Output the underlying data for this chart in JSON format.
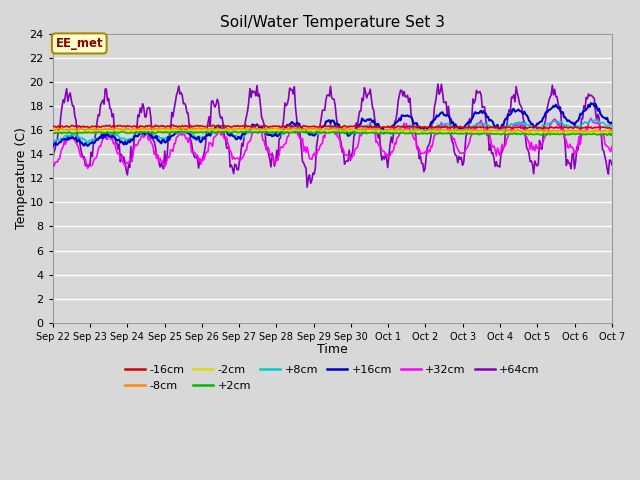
{
  "title": "Soil/Water Temperature Set 3",
  "xlabel": "Time",
  "ylabel": "Temperature (C)",
  "ylim": [
    0,
    24
  ],
  "yticks": [
    0,
    2,
    4,
    6,
    8,
    10,
    12,
    14,
    16,
    18,
    20,
    22,
    24
  ],
  "bg_color": "#d8d8d8",
  "plot_bg_color": "#d8d8d8",
  "annotation_text": "EE_met",
  "annotation_bg": "#ffffcc",
  "annotation_border": "#aa8800",
  "annotation_text_color": "#880000",
  "legend": [
    [
      "-16cm",
      "#dd0000"
    ],
    [
      "-8cm",
      "#ff8800"
    ],
    [
      "-2cm",
      "#dddd00"
    ],
    [
      "+2cm",
      "#00bb00"
    ],
    [
      "+8cm",
      "#00cccc"
    ],
    [
      "+16cm",
      "#0000cc"
    ],
    [
      "+32cm",
      "#ff00ff"
    ],
    [
      "+64cm",
      "#8800bb"
    ]
  ],
  "date_labels": [
    "Sep 22",
    "Sep 23",
    "Sep 24",
    "Sep 25",
    "Sep 26",
    "Sep 27",
    "Sep 28",
    "Sep 29",
    "Sep 30",
    "Oct 1",
    "Oct 2",
    "Oct 3",
    "Oct 4",
    "Oct 5",
    "Oct 6",
    "Oct 7"
  ],
  "n_points": 480,
  "days": 15
}
